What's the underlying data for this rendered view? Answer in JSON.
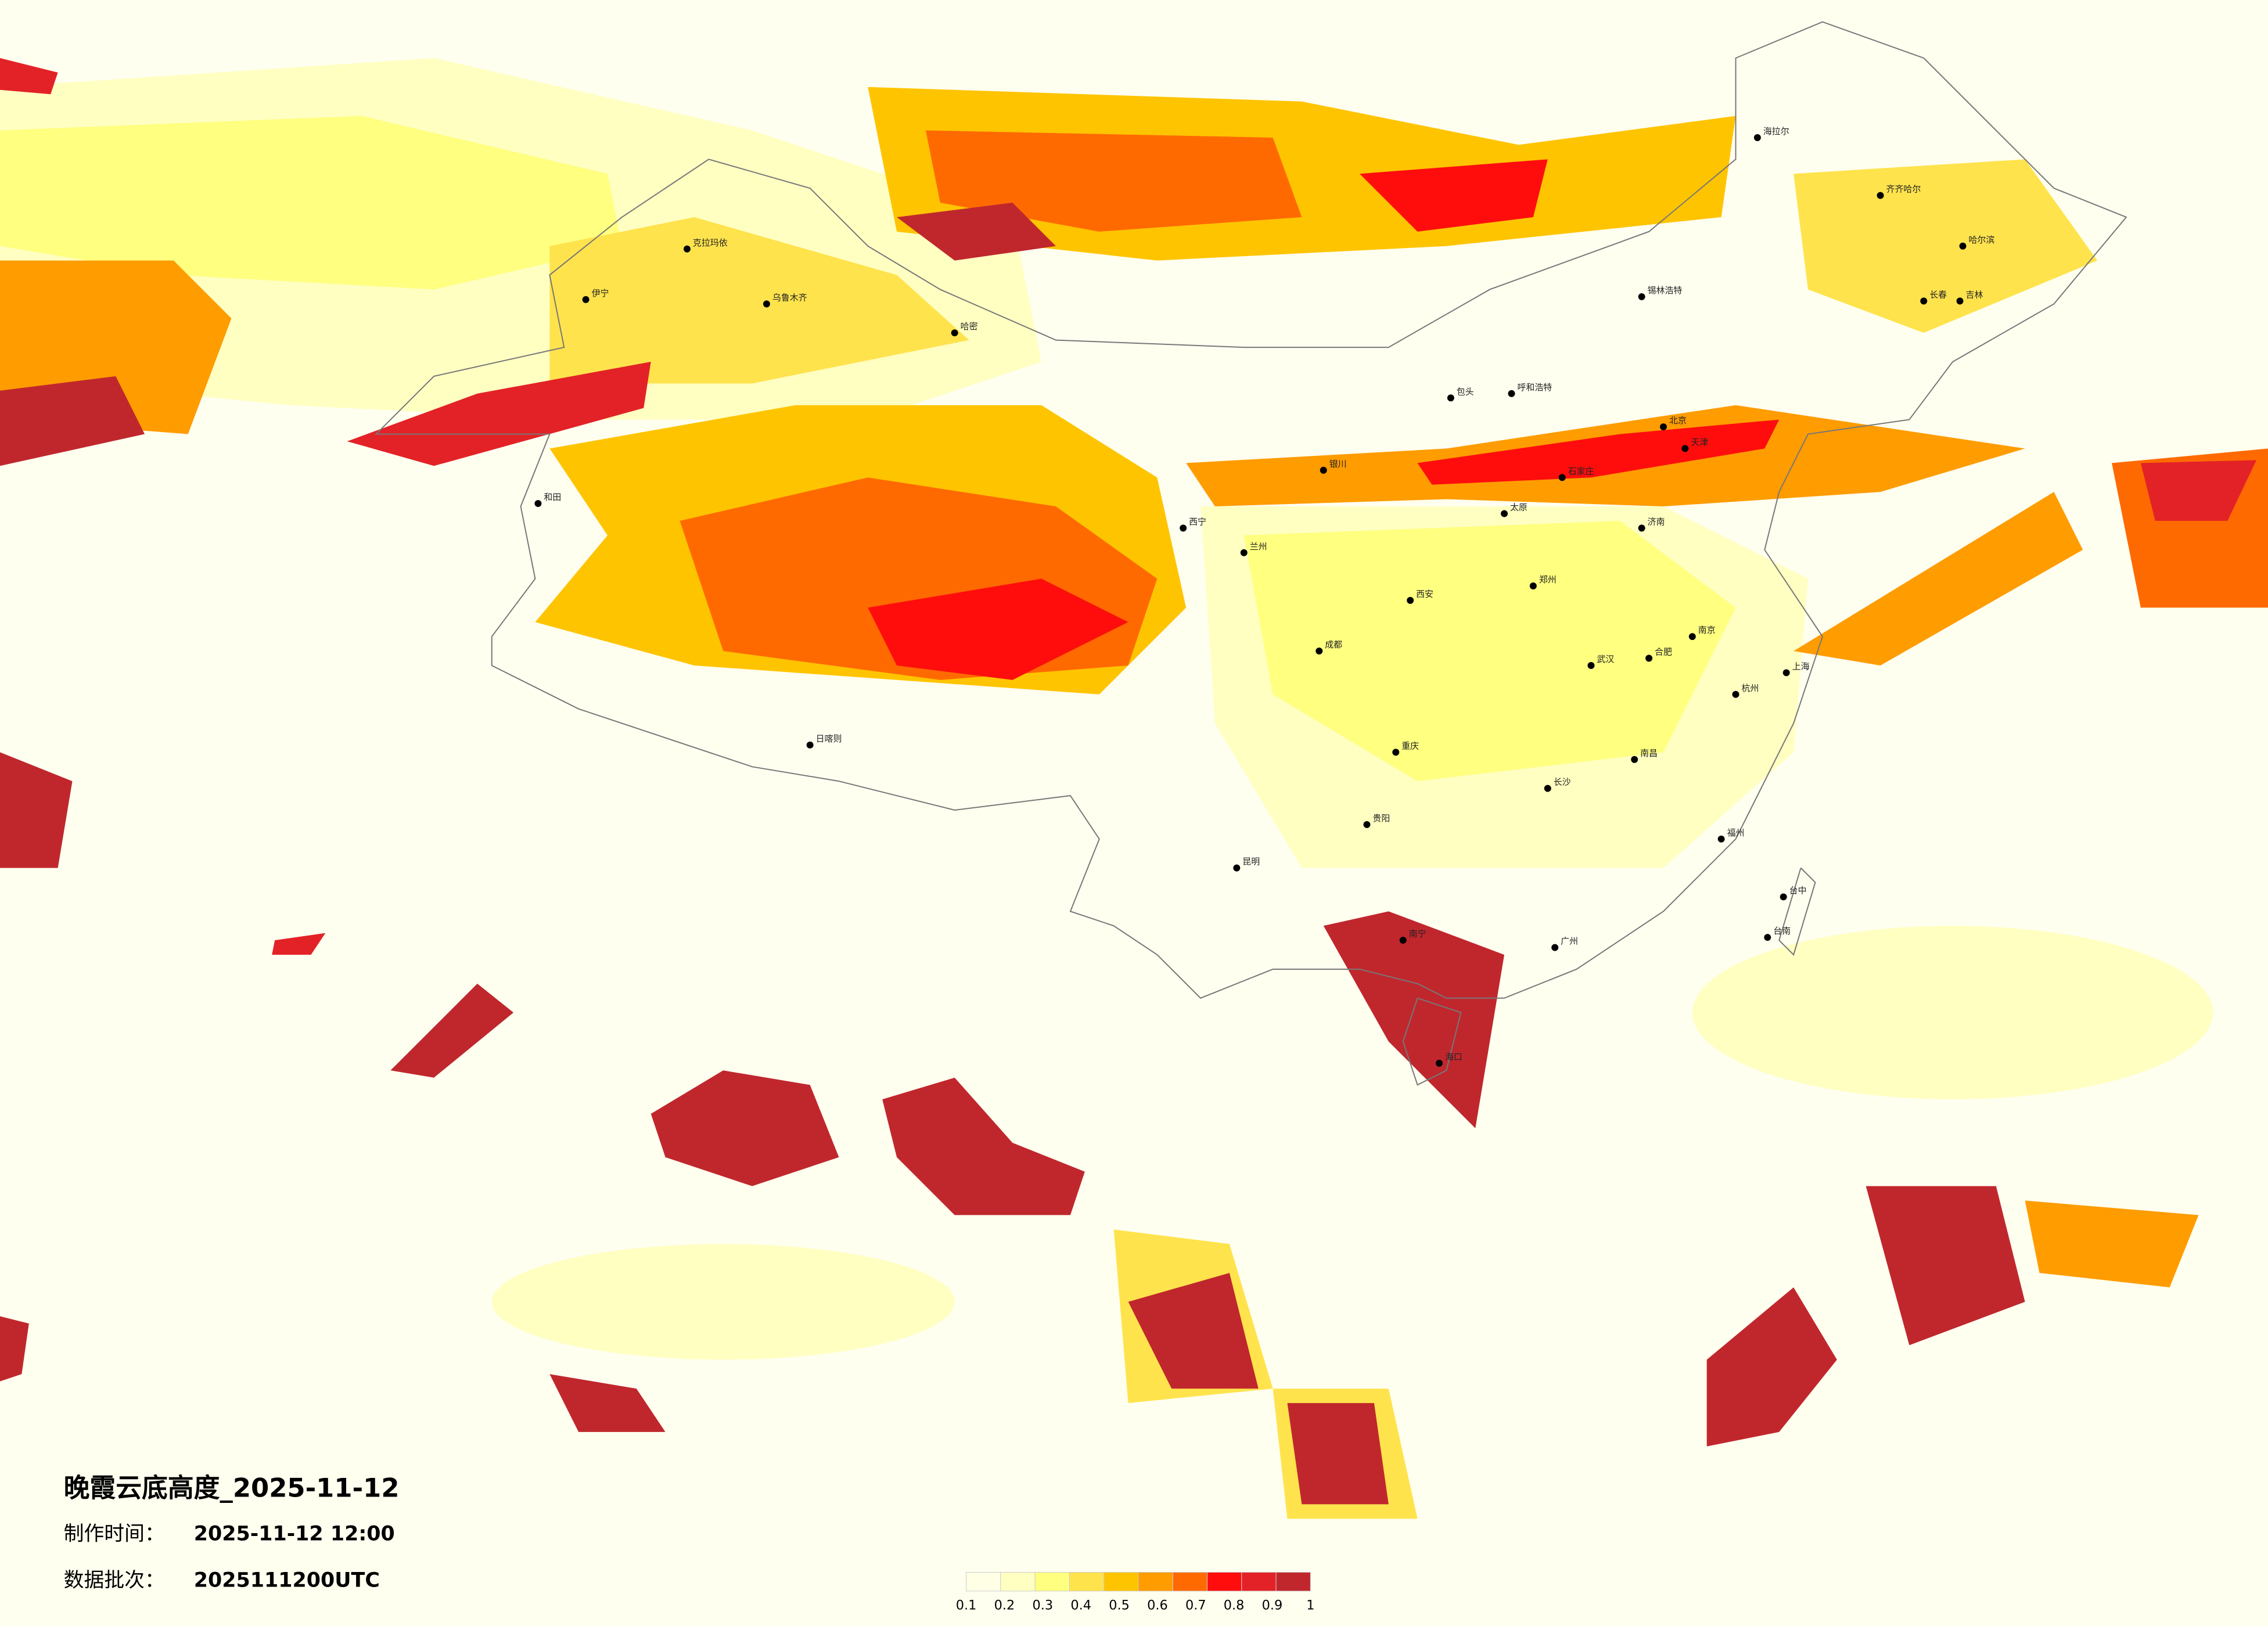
{
  "header": {
    "title": "晚霞云底高度_2025-11-12",
    "made_label": "制作时间：",
    "made_value": "2025-11-12 12:00",
    "batch_label": "数据批次：",
    "batch_value": "2025111200UTC"
  },
  "legend": {
    "colors": [
      "#ffffe6",
      "#ffffc2",
      "#ffff80",
      "#ffe34d",
      "#ffc400",
      "#ff9c00",
      "#ff6a00",
      "#ff0d0d",
      "#e32227",
      "#c0272d"
    ],
    "ticks": [
      0.1,
      0.2,
      0.3,
      0.4,
      0.5,
      0.6,
      0.7,
      0.8,
      0.9,
      1
    ]
  },
  "cities": [
    "克拉玛依",
    "伊宁",
    "乌鲁木齐",
    "哈密",
    "和田",
    "日喀则",
    "海拉尔",
    "齐齐哈尔",
    "哈尔滨",
    "长春",
    "吉林",
    "锡林浩特",
    "呼和浩特",
    "包头",
    "银川",
    "西宁",
    "兰州",
    "成都",
    "重庆",
    "贵阳",
    "昆明",
    "南宁",
    "广州",
    "海口",
    "长沙",
    "武汉",
    "南昌",
    "福州",
    "杭州",
    "上海",
    "南京",
    "合肥",
    "郑州",
    "济南",
    "石家庄",
    "北京",
    "天津",
    "太原",
    "西安",
    "台中",
    "台南"
  ]
}
